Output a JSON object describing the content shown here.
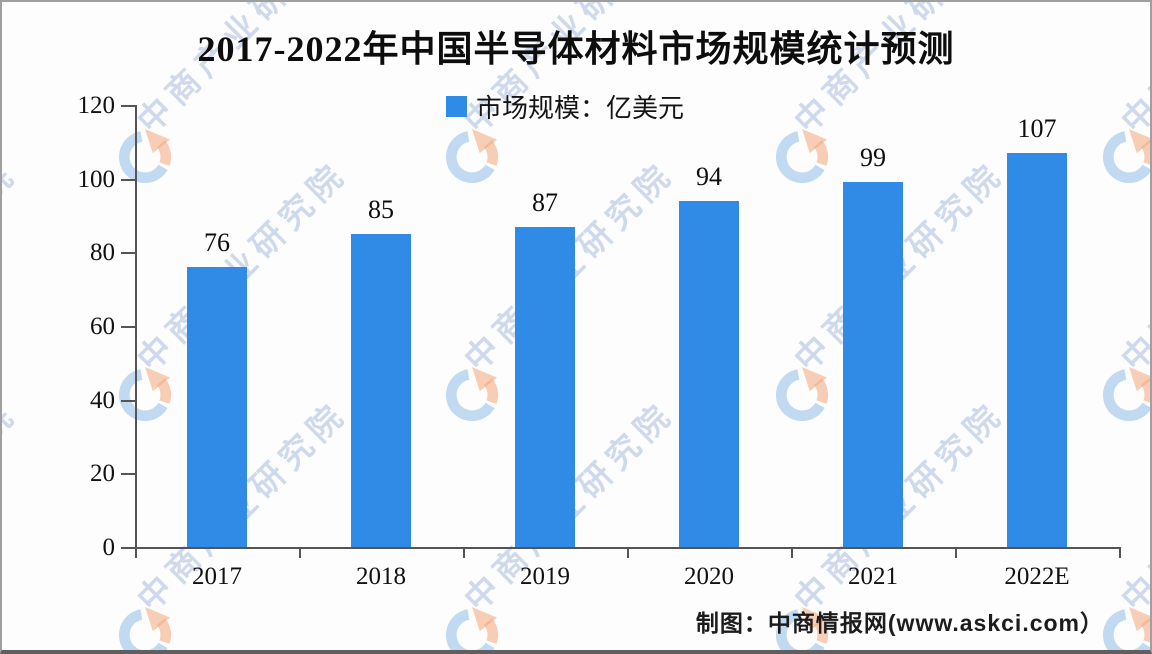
{
  "title": "2017-2022年中国半导体材料市场规模统计预测",
  "legend": {
    "label": "市场规模：亿美元"
  },
  "caption": "制图：中商情报网(www.askci.com）",
  "watermark": {
    "text": "中商产业研究院"
  },
  "colors": {
    "bar": "#2F8BE6",
    "axis": "#555555",
    "watermark_blue": "#8FBCE6",
    "watermark_orange": "#F2A878"
  },
  "chart_data": {
    "type": "bar",
    "categories": [
      "2017",
      "2018",
      "2019",
      "2020",
      "2021",
      "2022E"
    ],
    "values": [
      76,
      85,
      87,
      94,
      99,
      107
    ],
    "series": [
      {
        "name": "市场规模：亿美元",
        "values": [
          76,
          85,
          87,
          94,
          99,
          107
        ]
      }
    ],
    "title": "2017-2022年中国半导体材料市场规模统计预测",
    "legend_entries": [
      "市场规模：亿美元"
    ],
    "legend_position": "top-center",
    "xlabel": "",
    "ylabel": "",
    "ylim": [
      0,
      120
    ],
    "yticks": [
      0,
      20,
      40,
      60,
      80,
      100,
      120
    ],
    "grid": false,
    "data_labels": true,
    "source_note": "制图：中商情报网(www.askci.com）"
  }
}
